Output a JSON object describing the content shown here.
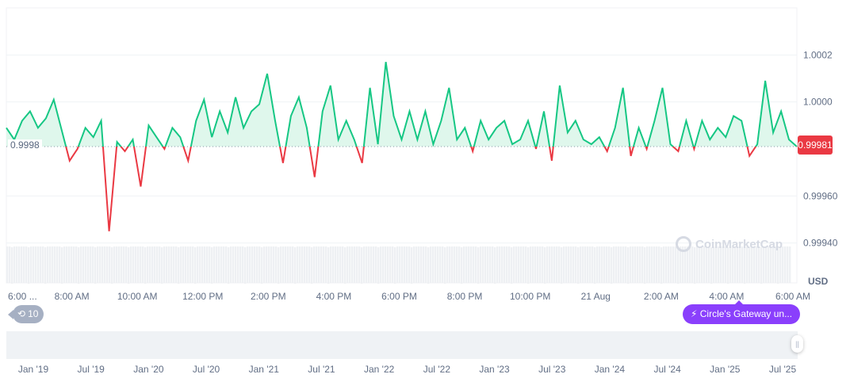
{
  "chart_data": {
    "type": "line",
    "title": "",
    "xlabel": "",
    "ylabel": "",
    "currency_label": "USD",
    "ylim": [
      0.99923,
      1.0004
    ],
    "y_ticks": [
      "1.0002",
      "1.0000",
      "0.99960",
      "0.99940"
    ],
    "y_tick_values": [
      1.0002,
      1.0,
      0.9996,
      0.9994
    ],
    "x_ticks": [
      "6:00 ...",
      "8:00 AM",
      "10:00 AM",
      "12:00 PM",
      "2:00 PM",
      "4:00 PM",
      "6:00 PM",
      "8:00 PM",
      "10:00 PM",
      "21 Aug",
      "2:00 AM",
      "4:00 AM",
      "6:00 AM"
    ],
    "baseline": {
      "value": 0.99981,
      "label": "0.9998"
    },
    "current_price": "0.99981",
    "values": [
      0.99989,
      0.99984,
      0.99992,
      0.99996,
      0.99989,
      0.99993,
      1.00001,
      0.99988,
      0.99975,
      0.9998,
      0.99989,
      0.99985,
      0.99992,
      0.99945,
      0.99983,
      0.99979,
      0.99984,
      0.99964,
      0.9999,
      0.99985,
      0.9998,
      0.99989,
      0.99985,
      0.99975,
      0.99992,
      1.00001,
      0.99985,
      0.99996,
      0.99987,
      1.00002,
      0.99989,
      0.99996,
      0.99999,
      1.00012,
      0.99992,
      0.99974,
      0.99994,
      1.00002,
      0.99989,
      0.99968,
      0.99996,
      1.00007,
      0.99984,
      0.99992,
      0.99984,
      0.99974,
      1.00006,
      0.99982,
      1.00017,
      0.99994,
      0.99984,
      0.99996,
      0.99984,
      0.99996,
      0.99982,
      0.99992,
      1.00006,
      0.99984,
      0.99989,
      0.99979,
      0.99992,
      0.99984,
      0.99989,
      0.99992,
      0.99982,
      0.99984,
      0.99992,
      0.9998,
      0.99996,
      0.99975,
      1.00007,
      0.99987,
      0.99992,
      0.99984,
      0.99982,
      0.99985,
      0.99979,
      0.99989,
      1.00006,
      0.99977,
      0.99989,
      0.9998,
      0.99992,
      1.00006,
      0.99982,
      0.99979,
      0.99992,
      0.9998,
      0.99992,
      0.99984,
      0.99989,
      0.99985,
      0.99994,
      0.99992,
      0.99977,
      0.99982,
      1.00009,
      0.99987,
      0.99996,
      0.99984,
      0.99981
    ],
    "colors": {
      "up": "#16c784",
      "down": "#ea3943",
      "up_fill": "#dff7ec",
      "volume": "#eef0f3",
      "navigator": "#eff2f5"
    },
    "grid": true,
    "navigator": {
      "x_ticks": [
        "Jan '19",
        "Jul '19",
        "Jan '20",
        "Jul '20",
        "Jan '21",
        "Jul '21",
        "Jan '22",
        "Jul '22",
        "Jan '23",
        "Jul '23",
        "Jan '24",
        "Jul '24",
        "Jan '25",
        "Jul '25"
      ]
    }
  },
  "badges": {
    "history_icon": "history-clock-icon",
    "history_count": "10",
    "news_icon": "lightning-icon",
    "news_text": "Circle's Gateway un..."
  },
  "watermark": "CoinMarketCap"
}
